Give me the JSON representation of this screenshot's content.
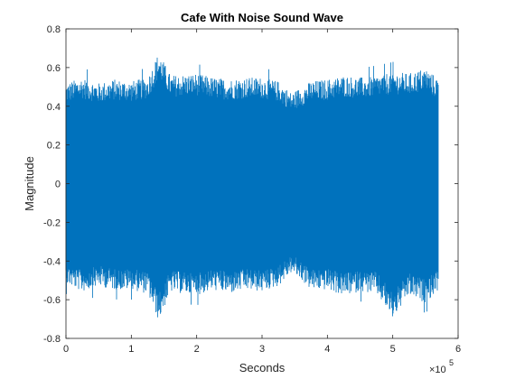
{
  "chart_data": {
    "type": "line",
    "title": "Cafe With Noise Sound Wave",
    "xlabel": "Seconds",
    "ylabel": "Magnitude",
    "x_exponent_base": "×10",
    "x_exponent_power": "5",
    "xlim": [
      0,
      6
    ],
    "ylim": [
      -0.8,
      0.8
    ],
    "x_ticks": [
      0,
      1,
      2,
      3,
      4,
      5,
      6
    ],
    "x_tick_labels": [
      "0",
      "1",
      "2",
      "3",
      "4",
      "5",
      "6"
    ],
    "y_ticks": [
      -0.8,
      -0.6,
      -0.4,
      -0.2,
      0,
      0.2,
      0.4,
      0.6,
      0.8
    ],
    "y_tick_labels": [
      "-0.8",
      "-0.6",
      "-0.4",
      "-0.2",
      "0",
      "0.2",
      "0.4",
      "0.6",
      "0.8"
    ],
    "grid": false,
    "box": true,
    "series": [
      {
        "color": "#0072BD",
        "x_scaled": [
          0,
          0.25,
          0.5,
          0.75,
          1.0,
          1.25,
          1.42,
          1.6,
          2.0,
          2.25,
          2.5,
          2.75,
          3.0,
          3.25,
          3.45,
          3.6,
          3.75,
          4.0,
          4.25,
          4.5,
          4.75,
          5.0,
          5.25,
          5.5,
          5.7
        ],
        "upper_envelope": [
          0.52,
          0.55,
          0.52,
          0.54,
          0.53,
          0.55,
          0.68,
          0.56,
          0.57,
          0.55,
          0.54,
          0.55,
          0.55,
          0.53,
          0.47,
          0.5,
          0.53,
          0.54,
          0.56,
          0.55,
          0.56,
          0.58,
          0.57,
          0.6,
          0.54
        ],
        "lower_envelope": [
          -0.52,
          -0.56,
          -0.53,
          -0.55,
          -0.55,
          -0.57,
          -0.71,
          -0.56,
          -0.58,
          -0.55,
          -0.57,
          -0.55,
          -0.56,
          -0.53,
          -0.46,
          -0.5,
          -0.55,
          -0.55,
          -0.58,
          -0.56,
          -0.57,
          -0.7,
          -0.58,
          -0.62,
          -0.55
        ]
      }
    ]
  }
}
